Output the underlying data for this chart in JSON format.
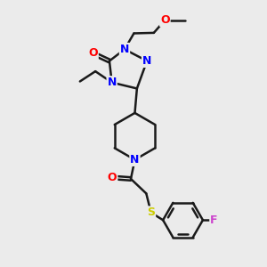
{
  "background_color": "#ebebeb",
  "bond_color": "#1a1a1a",
  "bond_width": 1.8,
  "atom_colors": {
    "N": "#0000ff",
    "O": "#ff0000",
    "S": "#cccc00",
    "F": "#cc44cc",
    "C": "#1a1a1a"
  },
  "fig_width": 3.0,
  "fig_height": 3.0,
  "dpi": 100
}
